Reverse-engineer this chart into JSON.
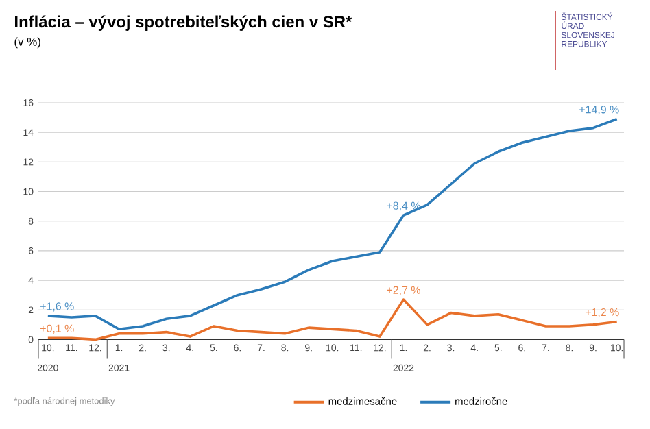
{
  "chart_data": {
    "type": "line",
    "title": "Inflácia – vývoj spotrebiteľských cien v SR*",
    "subtitle": "(v %)",
    "categories": [
      "10.",
      "11.",
      "12.",
      "1.",
      "2.",
      "3.",
      "4.",
      "5.",
      "6.",
      "7.",
      "8.",
      "9.",
      "10.",
      "11.",
      "12.",
      "1.",
      "2.",
      "3.",
      "4.",
      "5.",
      "6.",
      "7.",
      "8.",
      "9.",
      "10."
    ],
    "series": [
      {
        "name": "medzimesačne",
        "color": "#e8702a",
        "values": [
          0.1,
          0.1,
          0.0,
          0.4,
          0.4,
          0.5,
          0.2,
          0.9,
          0.6,
          0.5,
          0.4,
          0.8,
          0.7,
          0.6,
          0.2,
          2.7,
          1.0,
          1.8,
          1.6,
          1.7,
          1.3,
          0.9,
          0.9,
          1.0,
          1.2
        ],
        "value_labels": [
          "+0,1 %",
          null,
          null,
          null,
          null,
          null,
          null,
          null,
          null,
          null,
          null,
          null,
          null,
          null,
          null,
          "+2,7 %",
          null,
          null,
          null,
          null,
          null,
          null,
          null,
          null,
          "+1,2 %"
        ]
      },
      {
        "name": "medziročne",
        "color": "#2b7bb9",
        "values": [
          1.6,
          1.5,
          1.6,
          0.7,
          0.9,
          1.4,
          1.6,
          2.3,
          3.0,
          3.4,
          3.9,
          4.7,
          5.3,
          5.6,
          5.9,
          8.4,
          9.1,
          10.5,
          11.9,
          12.7,
          13.3,
          13.7,
          14.1,
          14.3,
          14.9
        ],
        "value_labels": [
          "+1,6 %",
          null,
          null,
          null,
          null,
          null,
          null,
          null,
          null,
          null,
          null,
          null,
          null,
          null,
          null,
          "+8,4 %",
          null,
          null,
          null,
          null,
          null,
          null,
          null,
          null,
          "+14,9 %"
        ]
      }
    ],
    "ylim": [
      0,
      16
    ],
    "yticks": [
      0,
      2,
      4,
      6,
      8,
      10,
      12,
      14,
      16
    ],
    "grid": "y",
    "legend": "bottom",
    "annotations": [
      "2020",
      "2021",
      "2022",
      "*podľa národnej metodiky",
      "ŠTATISTICKÝ ÚRAD SLOVENSKEJ REPUBLIKY"
    ]
  }
}
